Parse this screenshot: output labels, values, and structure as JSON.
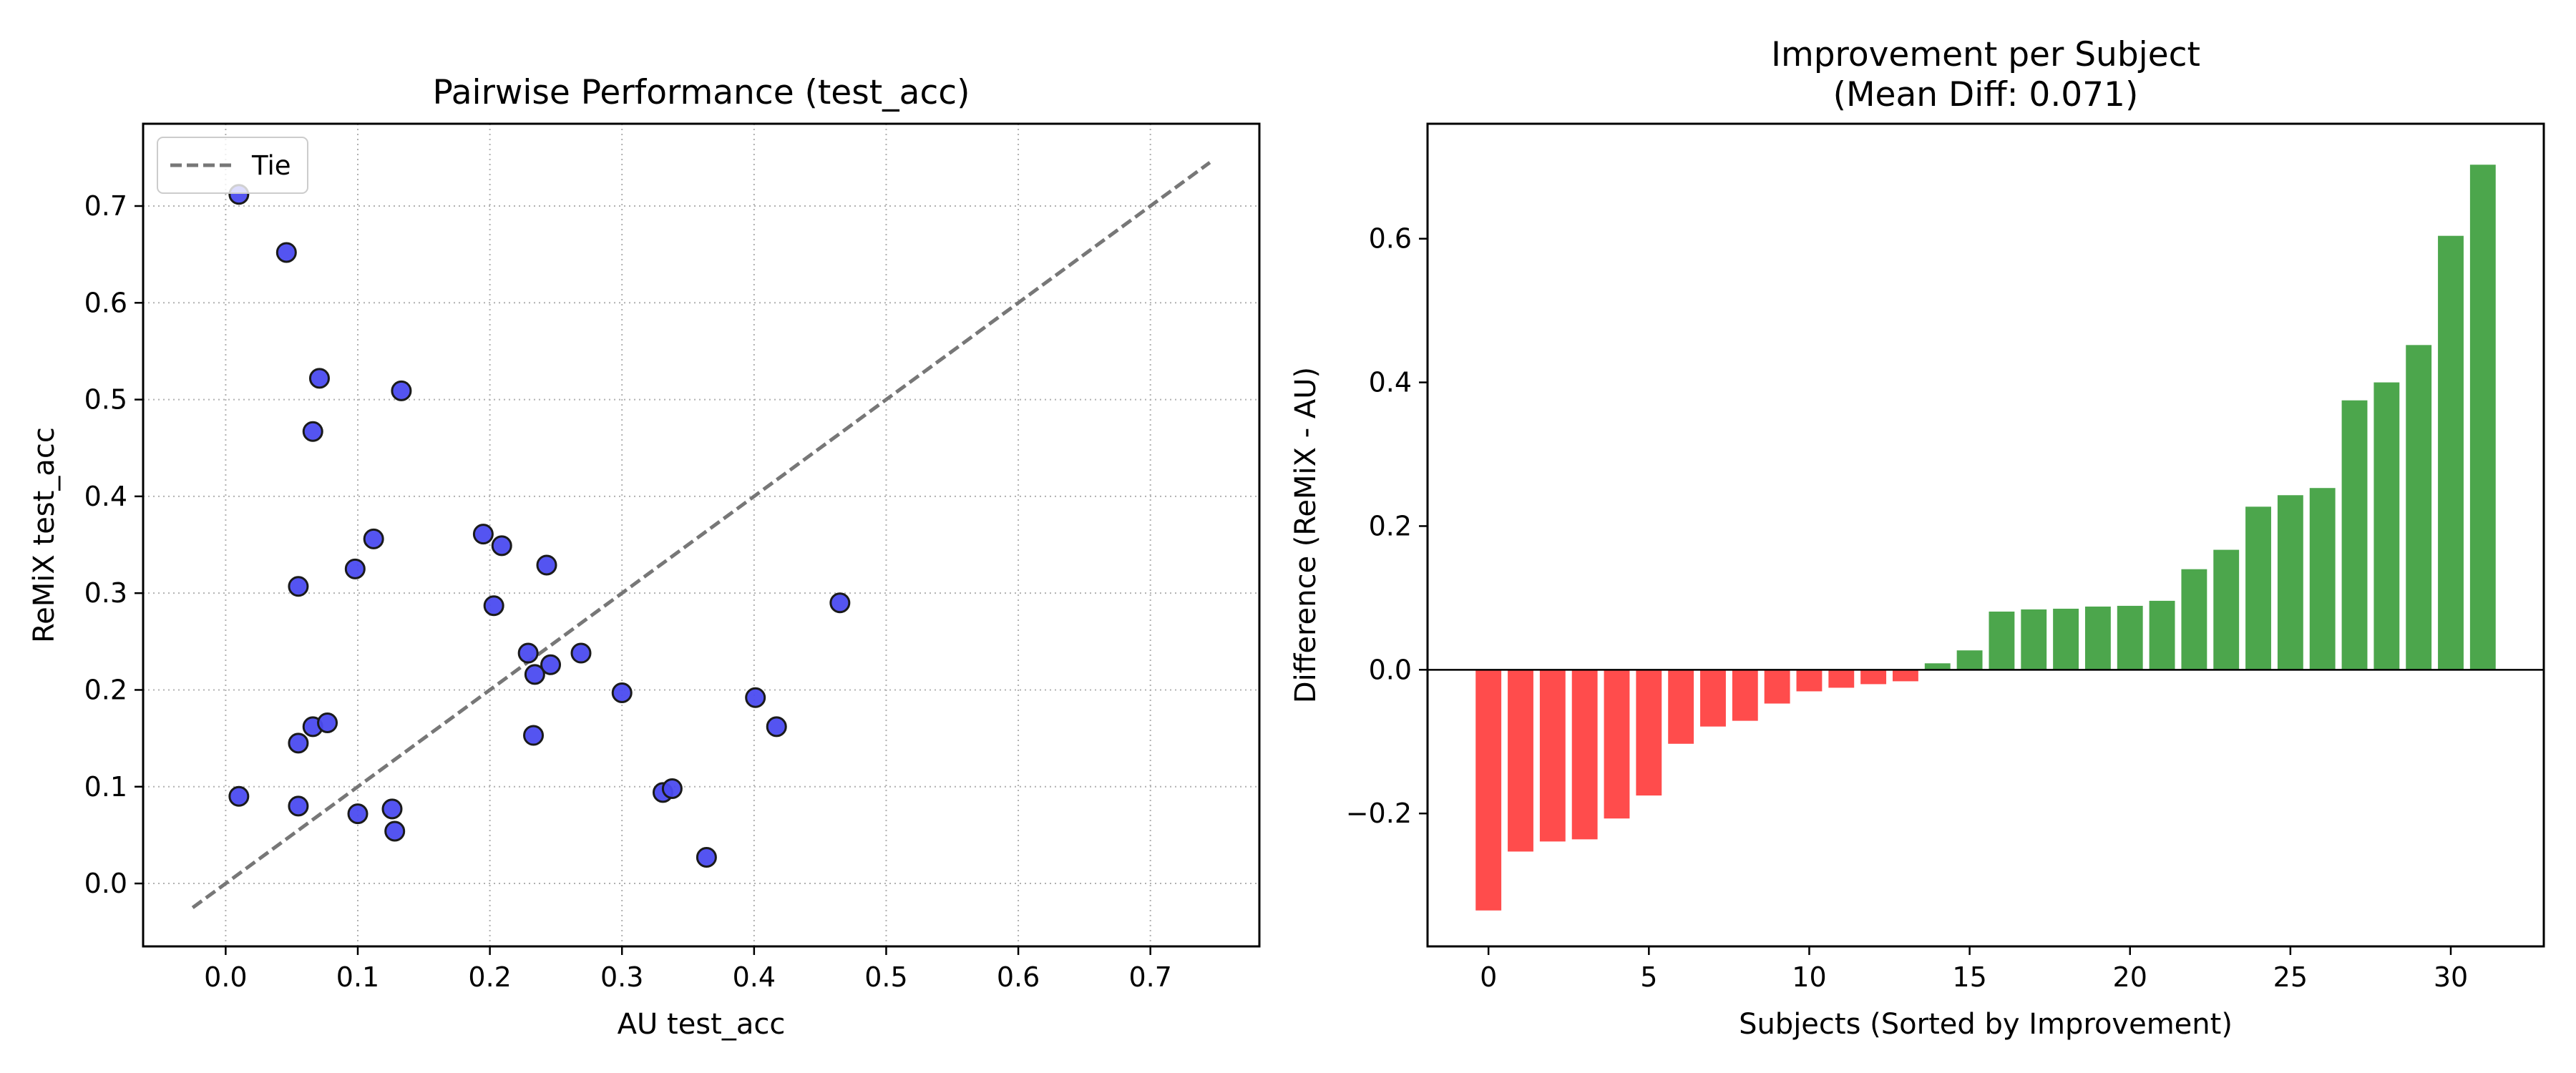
{
  "chart_data": [
    {
      "type": "scatter",
      "title": "Pairwise Performance (test_acc)",
      "xlabel": "AU test_acc",
      "ylabel": "ReMiX test_acc",
      "xlim": [
        -0.0625,
        0.7825
      ],
      "ylim": [
        -0.065,
        0.785
      ],
      "xticks": [
        0.0,
        0.1,
        0.2,
        0.3,
        0.4,
        0.5,
        0.6,
        0.7
      ],
      "yticks": [
        0.0,
        0.1,
        0.2,
        0.3,
        0.4,
        0.5,
        0.6,
        0.7
      ],
      "xtick_labels": [
        "0.0",
        "0.1",
        "0.2",
        "0.3",
        "0.4",
        "0.5",
        "0.6",
        "0.7"
      ],
      "ytick_labels": [
        "0.0",
        "0.1",
        "0.2",
        "0.3",
        "0.4",
        "0.5",
        "0.6",
        "0.7"
      ],
      "grid": true,
      "grid_style": "dotted",
      "legend": {
        "position": "top-left",
        "entries": [
          {
            "label": "Tie",
            "style": "dashed",
            "color": "#777777"
          }
        ]
      },
      "tie_line": {
        "x": [
          -0.025,
          0.745
        ],
        "y": [
          -0.025,
          0.745
        ]
      },
      "marker_color": "#4B4BF0",
      "marker_edge": "#1a1a1a",
      "points": [
        [
          0.01,
          0.712
        ],
        [
          0.046,
          0.652
        ],
        [
          0.071,
          0.522
        ],
        [
          0.133,
          0.509
        ],
        [
          0.066,
          0.467
        ],
        [
          0.112,
          0.356
        ],
        [
          0.098,
          0.325
        ],
        [
          0.055,
          0.307
        ],
        [
          0.195,
          0.361
        ],
        [
          0.209,
          0.349
        ],
        [
          0.243,
          0.329
        ],
        [
          0.203,
          0.287
        ],
        [
          0.465,
          0.29
        ],
        [
          0.229,
          0.238
        ],
        [
          0.269,
          0.238
        ],
        [
          0.246,
          0.226
        ],
        [
          0.234,
          0.216
        ],
        [
          0.3,
          0.197
        ],
        [
          0.401,
          0.192
        ],
        [
          0.417,
          0.162
        ],
        [
          0.233,
          0.153
        ],
        [
          0.066,
          0.162
        ],
        [
          0.077,
          0.166
        ],
        [
          0.055,
          0.145
        ],
        [
          0.01,
          0.09
        ],
        [
          0.055,
          0.08
        ],
        [
          0.1,
          0.072
        ],
        [
          0.126,
          0.077
        ],
        [
          0.128,
          0.054
        ],
        [
          0.331,
          0.094
        ],
        [
          0.338,
          0.098
        ],
        [
          0.364,
          0.027
        ]
      ]
    },
    {
      "type": "bar",
      "title": "Improvement per Subject",
      "subtitle": "(Mean Diff: 0.071)",
      "xlabel": "Subjects (Sorted by Improvement)",
      "ylabel": "Difference (ReMiX - AU)",
      "xlim": [
        -1.9,
        32.9
      ],
      "ylim": [
        -0.385,
        0.76
      ],
      "xticks": [
        0,
        5,
        10,
        15,
        20,
        25,
        30
      ],
      "yticks": [
        -0.2,
        0.0,
        0.2,
        0.4,
        0.6
      ],
      "xtick_labels": [
        "0",
        "5",
        "10",
        "15",
        "20",
        "25",
        "30"
      ],
      "ytick_labels": [
        "−0.2",
        "0.0",
        "0.2",
        "0.4",
        "0.6"
      ],
      "grid": false,
      "negative_color": "#FF4C4C",
      "positive_color": "#4CA64C",
      "values": [
        -0.335,
        -0.253,
        -0.239,
        -0.236,
        -0.207,
        -0.175,
        -0.103,
        -0.079,
        -0.071,
        -0.047,
        -0.03,
        -0.025,
        -0.02,
        -0.016,
        0.009,
        0.027,
        0.081,
        0.084,
        0.085,
        0.088,
        0.089,
        0.096,
        0.14,
        0.167,
        0.227,
        0.243,
        0.253,
        0.375,
        0.4,
        0.452,
        0.604,
        0.703
      ]
    }
  ]
}
